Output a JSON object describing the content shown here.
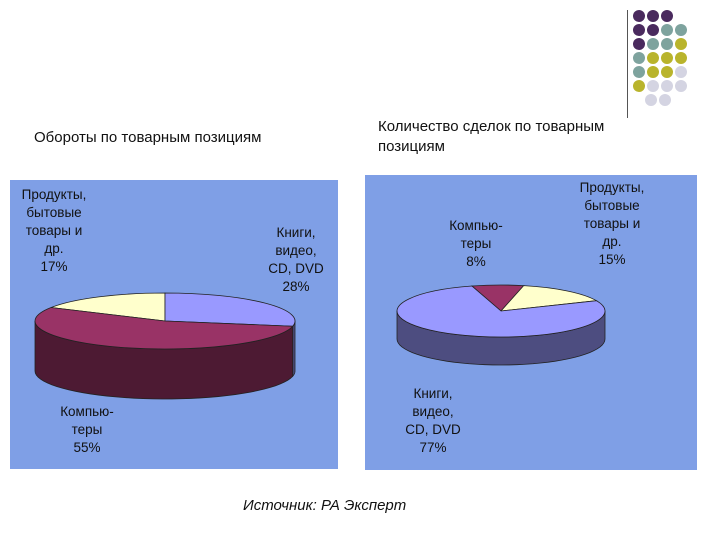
{
  "source": "Источник: РА Эксперт",
  "colors": {
    "purple": "#4a2a5e",
    "teal": "#7ea39e",
    "olive": "#b9b42c",
    "lightgray": "#d4d4e2",
    "panel": "#7f9fe6"
  },
  "chart_data": [
    {
      "type": "pie",
      "title": "Обороты по товарным позициям",
      "slices": [
        {
          "label": [
            "Продукты,",
            "бытовые",
            "товары и",
            "др."
          ],
          "pct": "17%",
          "value": 17,
          "color": "#ffffcc"
        },
        {
          "label": [
            "Книги,",
            "видео,",
            "CD, DVD"
          ],
          "pct": "28%",
          "value": 28,
          "color": "#9999ff"
        },
        {
          "label": [
            "Компью-",
            "теры"
          ],
          "pct": "55%",
          "value": 55,
          "color": "#993366"
        }
      ]
    },
    {
      "type": "pie",
      "title": "Количество сделок по товарным позициям",
      "slices": [
        {
          "label": [
            "Компью-",
            "теры"
          ],
          "pct": "8%",
          "value": 8,
          "color": "#993366"
        },
        {
          "label": [
            "Продукты,",
            "бытовые",
            "товары и",
            "др."
          ],
          "pct": "15%",
          "value": 15,
          "color": "#ffffcc"
        },
        {
          "label": [
            "Книги,",
            "видео,",
            "CD, DVD"
          ],
          "pct": "77%",
          "value": 77,
          "color": "#9999ff"
        }
      ]
    }
  ]
}
